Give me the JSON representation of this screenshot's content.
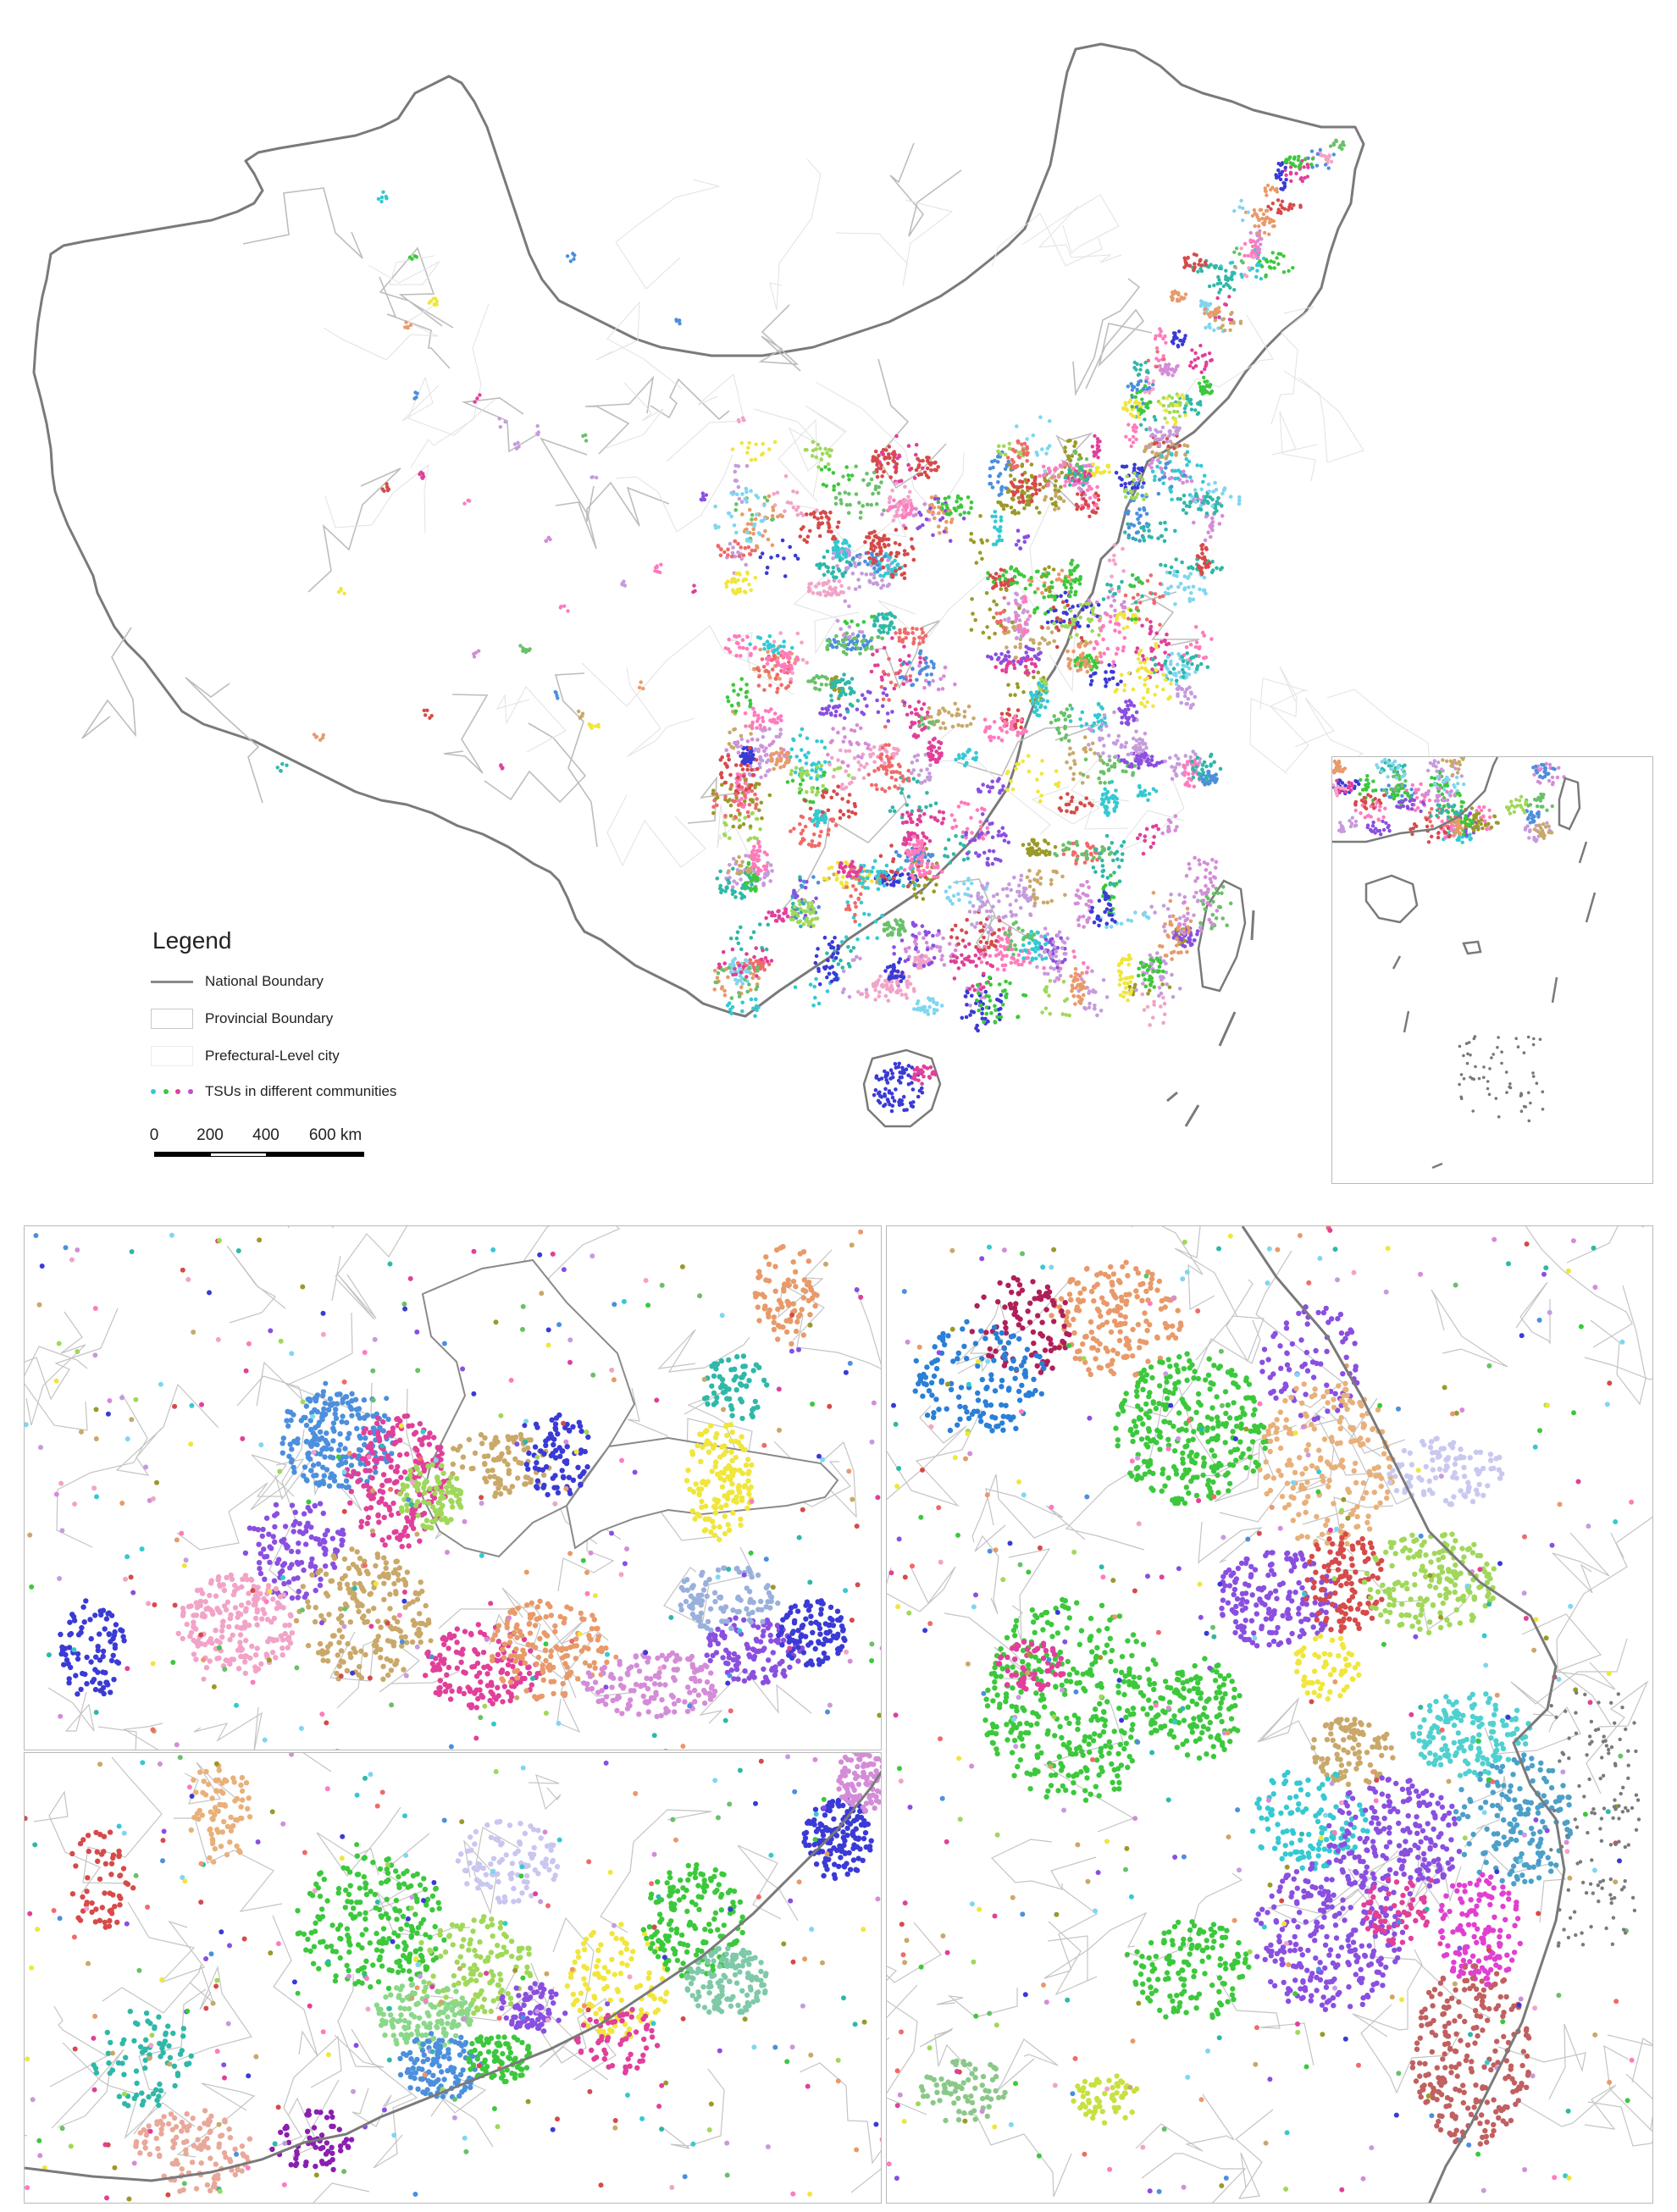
{
  "legend": {
    "title": "Legend",
    "items": [
      {
        "key": "national",
        "label": "National Boundary"
      },
      {
        "key": "provincial",
        "label": "Provincial Boundary"
      },
      {
        "key": "prefectural",
        "label": "Prefectural-Level city"
      },
      {
        "key": "tsu",
        "label": "TSUs in different communities"
      }
    ]
  },
  "scale_bar": {
    "ticks": [
      "0",
      "200",
      "400",
      "600 km"
    ]
  },
  "colors": {
    "national_boundary": "#7a7a7a",
    "provincial_boundary": "#bdbdbd",
    "prefectural_boundary": "#e2e2e2",
    "background": "#ffffff",
    "community_palette": [
      "#3cc83c",
      "#3a3ad6",
      "#e0409a",
      "#f0e63c",
      "#8a4fe0",
      "#e89a6a",
      "#35c9d2",
      "#d64a4a",
      "#6ac06a",
      "#c69bdc",
      "#f2a3c8",
      "#4c8fdc",
      "#a0d85a",
      "#d48cd8",
      "#2fb8a8",
      "#c9a86a",
      "#ff7bbd",
      "#9a9a2a",
      "#7fd6f0",
      "#ef6b6b"
    ]
  },
  "icons": {
    "legend_tsu_dots": [
      "#35c9d2",
      "#3cc83c",
      "#e0409a",
      "#c64ad6"
    ]
  }
}
